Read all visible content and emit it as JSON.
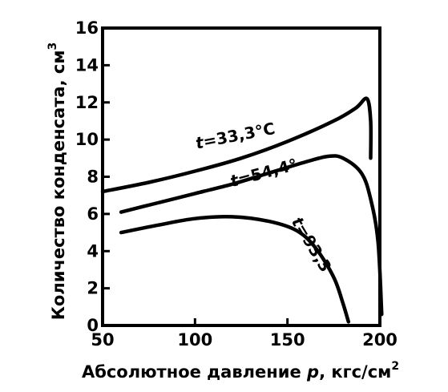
{
  "chart_data": {
    "type": "line",
    "title": "",
    "xlabel": {
      "text": "Абсолютное давление",
      "var": "p",
      "unit": ", кгс/см",
      "sup": "2"
    },
    "ylabel": {
      "text": "Количество конденсата, см",
      "sup": "3"
    },
    "xlim": [
      50,
      200
    ],
    "ylim": [
      0,
      16
    ],
    "xticks": [
      50,
      100,
      150,
      200
    ],
    "yticks": [
      0,
      2,
      4,
      6,
      8,
      10,
      12,
      14,
      16
    ],
    "grid": false,
    "series": [
      {
        "label": {
          "var": "t",
          "text": "=33,3°C"
        },
        "points": [
          [
            50,
            7.2
          ],
          [
            75,
            7.7
          ],
          [
            100,
            8.3
          ],
          [
            125,
            9.0
          ],
          [
            150,
            9.9
          ],
          [
            175,
            11.0
          ],
          [
            187,
            11.7
          ],
          [
            193,
            12.2
          ],
          [
            195,
            11.0
          ],
          [
            195,
            9.0
          ]
        ]
      },
      {
        "label": {
          "var": "t",
          "text": "=54,4°"
        },
        "points": [
          [
            60,
            6.1
          ],
          [
            80,
            6.6
          ],
          [
            100,
            7.1
          ],
          [
            120,
            7.6
          ],
          [
            140,
            8.2
          ],
          [
            160,
            8.8
          ],
          [
            172,
            9.1
          ],
          [
            180,
            9.0
          ],
          [
            190,
            8.2
          ],
          [
            195,
            6.8
          ],
          [
            199,
            4.5
          ],
          [
            201,
            0.6
          ]
        ]
      },
      {
        "label": {
          "var": "t",
          "text": "=93,3"
        },
        "points": [
          [
            60,
            5.0
          ],
          [
            80,
            5.4
          ],
          [
            100,
            5.75
          ],
          [
            120,
            5.85
          ],
          [
            140,
            5.6
          ],
          [
            155,
            5.1
          ],
          [
            165,
            4.2
          ],
          [
            175,
            2.6
          ],
          [
            180,
            1.2
          ],
          [
            183,
            0.2
          ]
        ]
      }
    ]
  }
}
